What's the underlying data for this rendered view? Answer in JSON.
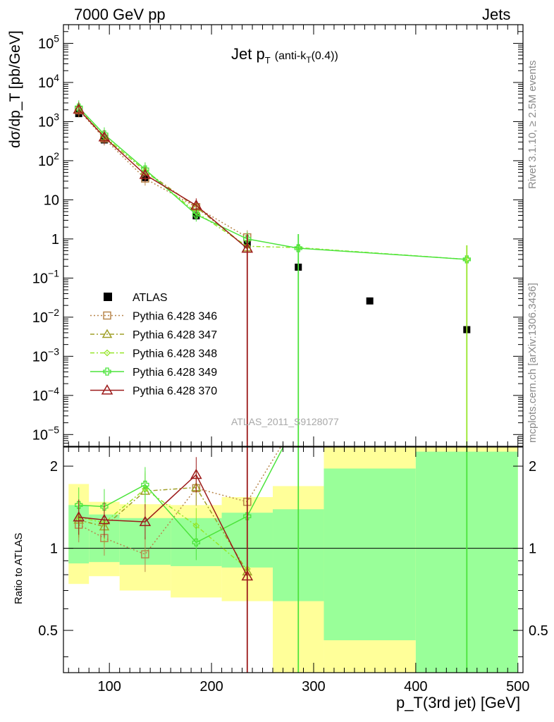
{
  "header": {
    "left": "7000 GeV pp",
    "right": "Jets"
  },
  "side_labels": {
    "rivet": "Rivet 3.1.10, ≥ 2.5M events",
    "mcplots": "mcplots.cern.ch [arXiv:1306.3436]"
  },
  "watermark": "ATLAS_2011_S9128077",
  "plot_title": {
    "main": "Jet p",
    "sub": "T",
    "paren_open": "(anti-k",
    "paren_sub": "T",
    "paren_close": "(0.4))"
  },
  "colors": {
    "data": "#000000",
    "p346": "#b8864b",
    "p347": "#a0a028",
    "p348": "#96e628",
    "p349": "#4ce43c",
    "p370": "#9c1a1a",
    "band_yellow": "#ffff99",
    "band_green": "#99ff99"
  },
  "chart_data": [
    {
      "type": "scatter",
      "panel": "main",
      "ylabel": "dσ/dp_T [pb/GeV]",
      "xlim": [
        55,
        505
      ],
      "ylim": [
        5e-06,
        300000.0
      ],
      "log_y": true,
      "y_ticks": [
        {
          "v": 100000.0,
          "label": "10",
          "exp": "5"
        },
        {
          "v": 10000.0,
          "label": "10",
          "exp": "4"
        },
        {
          "v": 1000.0,
          "label": "10",
          "exp": "3"
        },
        {
          "v": 100.0,
          "label": "10",
          "exp": "2"
        },
        {
          "v": 10,
          "label": "10",
          "exp": ""
        },
        {
          "v": 1,
          "label": "1",
          "exp": ""
        },
        {
          "v": 0.1,
          "label": "10",
          "exp": "−1"
        },
        {
          "v": 0.01,
          "label": "10",
          "exp": "−2"
        },
        {
          "v": 0.001,
          "label": "10",
          "exp": "−3"
        },
        {
          "v": 0.0001,
          "label": "10",
          "exp": "−4"
        },
        {
          "v": 1e-05,
          "label": "10",
          "exp": "−5"
        }
      ],
      "legend_position": "lower-left",
      "series": [
        {
          "name": "ATLAS",
          "key": "data",
          "points": [
            [
              70,
              1600
            ],
            [
              95,
              340
            ],
            [
              135,
              37
            ],
            [
              185,
              3.9
            ],
            [
              235,
              0.75
            ],
            [
              285,
              0.19
            ],
            [
              355,
              0.026
            ],
            [
              450,
              0.0048
            ]
          ]
        },
        {
          "name": "Pythia 6.428 346",
          "key": "p346",
          "points": [
            [
              70,
              1950
            ],
            [
              95,
              370
            ],
            [
              135,
              35
            ],
            [
              185,
              6.5
            ],
            [
              235,
              1.1
            ]
          ]
        },
        {
          "name": "Pythia 6.428 347",
          "key": "p347",
          "points": [
            [
              70,
              2050
            ],
            [
              95,
              410
            ],
            [
              135,
              55
            ],
            [
              185,
              6.5
            ],
            [
              235,
              0.6
            ]
          ]
        },
        {
          "name": "Pythia 6.428 348",
          "key": "p348",
          "points": [
            [
              70,
              2100
            ],
            [
              95,
              420
            ],
            [
              135,
              55
            ],
            [
              185,
              4.8
            ],
            [
              235,
              0.65
            ],
            [
              285,
              0.6
            ],
            [
              450,
              0.3
            ]
          ]
        },
        {
          "name": "Pythia 6.428 349",
          "key": "p349",
          "points": [
            [
              70,
              2300
            ],
            [
              95,
              470
            ],
            [
              135,
              60
            ],
            [
              185,
              4.2
            ],
            [
              235,
              1.0
            ],
            [
              285,
              0.58
            ],
            [
              450,
              0.3
            ]
          ]
        },
        {
          "name": "Pythia 6.428 370",
          "key": "p370",
          "points": [
            [
              70,
              2050
            ],
            [
              95,
              400
            ],
            [
              135,
              44
            ],
            [
              185,
              7.2
            ],
            [
              235,
              0.57
            ]
          ]
        }
      ]
    },
    {
      "type": "line",
      "panel": "ratio",
      "ylabel": "Ratio to ATLAS",
      "xlabel": "p_T(3rd jet) [GeV]",
      "xlim": [
        55,
        505
      ],
      "ylim": [
        0.35,
        2.35
      ],
      "log_y": true,
      "x_ticks": [
        100,
        200,
        300,
        400,
        500
      ],
      "y_ticks": [
        {
          "v": 0.5,
          "label": "0.5"
        },
        {
          "v": 1,
          "label": "1"
        },
        {
          "v": 2,
          "label": "2"
        }
      ],
      "bands": [
        {
          "x0": 60,
          "x1": 80,
          "y_lo": 0.74,
          "y_hi": 1.72,
          "g_lo": 0.88,
          "g_hi": 1.44
        },
        {
          "x0": 80,
          "x1": 110,
          "y_lo": 0.79,
          "y_hi": 1.48,
          "g_lo": 0.89,
          "g_hi": 1.33
        },
        {
          "x0": 110,
          "x1": 160,
          "y_lo": 0.7,
          "y_hi": 1.45,
          "g_lo": 0.87,
          "g_hi": 1.29
        },
        {
          "x0": 160,
          "x1": 210,
          "y_lo": 0.66,
          "y_hi": 1.44,
          "g_lo": 0.86,
          "g_hi": 1.29
        },
        {
          "x0": 210,
          "x1": 260,
          "y_lo": 0.64,
          "y_hi": 1.54,
          "g_lo": 0.85,
          "g_hi": 1.35
        },
        {
          "x0": 260,
          "x1": 310,
          "y_lo": 0.35,
          "y_hi": 1.69,
          "g_lo": 0.64,
          "g_hi": 1.39
        },
        {
          "x0": 310,
          "x1": 400,
          "y_lo": 0.35,
          "y_hi": 2.35,
          "g_lo": 0.46,
          "g_hi": 1.96
        },
        {
          "x0": 400,
          "x1": 500,
          "y_lo": 0.35,
          "y_hi": 2.35,
          "g_lo": 0.35,
          "g_hi": 2.26
        }
      ],
      "series": [
        {
          "name": "Pythia 6.428 346",
          "key": "p346",
          "points": [
            [
              70,
              1.22
            ],
            [
              95,
              1.09
            ],
            [
              135,
              0.95
            ],
            [
              185,
              1.66
            ],
            [
              235,
              1.48
            ],
            [
              285,
              3.0
            ]
          ]
        },
        {
          "name": "Pythia 6.428 347",
          "key": "p347",
          "points": [
            [
              70,
              1.27
            ],
            [
              95,
              1.2
            ],
            [
              135,
              1.62
            ],
            [
              185,
              1.67
            ],
            [
              235,
              0.82
            ]
          ]
        },
        {
          "name": "Pythia 6.428 348",
          "key": "p348",
          "points": [
            [
              70,
              1.3
            ],
            [
              95,
              1.24
            ],
            [
              135,
              1.65
            ],
            [
              185,
              1.21
            ],
            [
              235,
              0.84
            ]
          ]
        },
        {
          "name": "Pythia 6.428 349",
          "key": "p349",
          "points": [
            [
              70,
              1.44
            ],
            [
              95,
              1.42
            ],
            [
              135,
              1.71
            ],
            [
              185,
              1.05
            ],
            [
              235,
              1.31
            ],
            [
              285,
              3.0
            ]
          ]
        },
        {
          "name": "Pythia 6.428 370",
          "key": "p370",
          "points": [
            [
              70,
              1.3
            ],
            [
              95,
              1.27
            ],
            [
              135,
              1.25
            ],
            [
              185,
              1.86
            ],
            [
              235,
              0.79
            ]
          ]
        }
      ]
    }
  ]
}
